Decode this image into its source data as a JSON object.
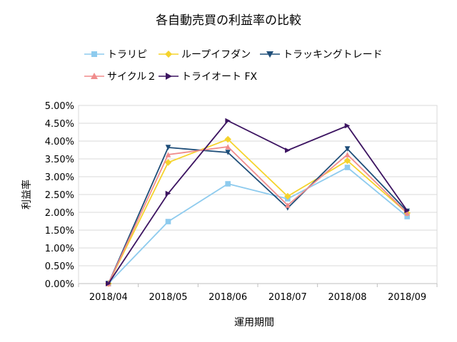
{
  "chart_data": {
    "type": "line",
    "title": "各自動売買の利益率の比較",
    "xlabel": "運用期間",
    "ylabel": "利益率",
    "categories": [
      "2018/04",
      "2018/05",
      "2018/06",
      "2018/07",
      "2018/08",
      "2018/09"
    ],
    "ylim": [
      0,
      0.05
    ],
    "yticks": [
      "0.00%",
      "0.50%",
      "1.00%",
      "1.50%",
      "2.00%",
      "2.50%",
      "3.00%",
      "3.50%",
      "4.00%",
      "4.50%",
      "5.00%"
    ],
    "grid": "horizontal",
    "legend_position": "top",
    "series": [
      {
        "name": "トラリピ",
        "color": "#8ecbee",
        "marker": "square",
        "values": [
          0.0,
          0.0174,
          0.028,
          0.0238,
          0.0326,
          0.0188
        ]
      },
      {
        "name": "ループイフダン",
        "color": "#f5d32c",
        "marker": "diamond",
        "values": [
          0.0,
          0.034,
          0.0405,
          0.0245,
          0.0345,
          0.0198
        ]
      },
      {
        "name": "トラッキングトレード",
        "color": "#1f4e79",
        "marker": "triangle-down",
        "values": [
          0.0,
          0.0382,
          0.0368,
          0.0212,
          0.0378,
          0.0203
        ]
      },
      {
        "name": "サイクル２",
        "color": "#f08c8c",
        "marker": "triangle-up",
        "values": [
          0.0,
          0.0362,
          0.0384,
          0.022,
          0.0362,
          0.0198
        ]
      },
      {
        "name": "トライオート FX",
        "color": "#3c1461",
        "marker": "triangle-right",
        "values": [
          0.0,
          0.0253,
          0.0457,
          0.0374,
          0.0443,
          0.0205
        ]
      }
    ]
  }
}
